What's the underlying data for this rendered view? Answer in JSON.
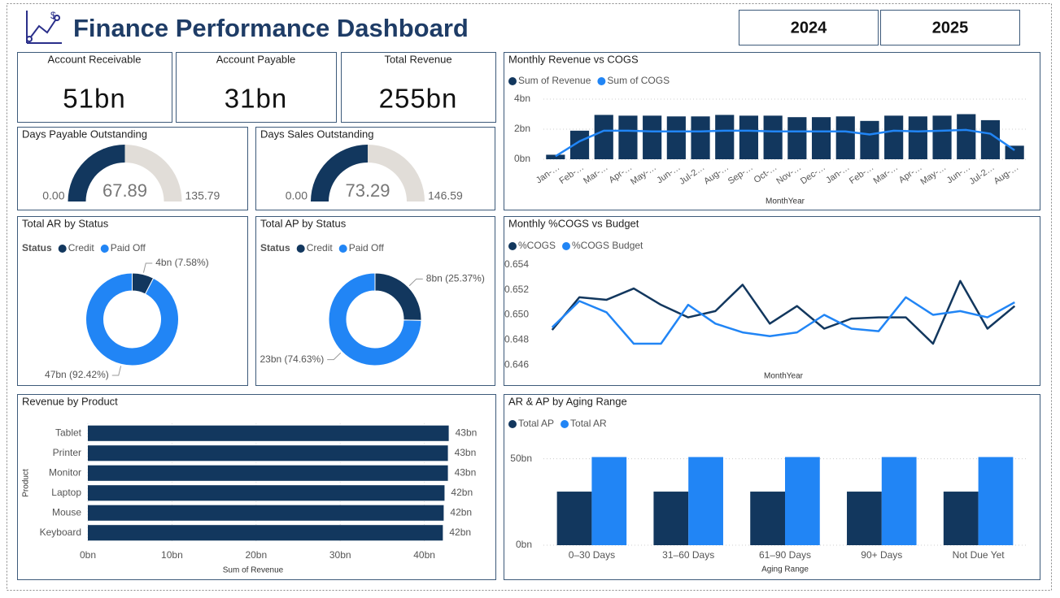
{
  "header": {
    "title": "Finance Performance Dashboard",
    "years": [
      "2024",
      "2025"
    ]
  },
  "cards": [
    {
      "label": "Account Receivable",
      "value": "51bn"
    },
    {
      "label": "Account Payable",
      "value": "31bn"
    },
    {
      "label": "Total Revenue",
      "value": "255bn"
    }
  ],
  "chart_data": [
    {
      "type": "gauge",
      "title": "Days Payable Outstanding",
      "value": 67.89,
      "range": [
        {
          "value": 0,
          "label": "0.00"
        },
        135.79
      ],
      "color": "#12375e",
      "track_color": "#e1ddd8"
    },
    {
      "type": "gauge",
      "title": "Days Sales Outstanding",
      "value": 73.29,
      "range": [
        {
          "value": 0,
          "label": "0.00"
        },
        146.59
      ],
      "color": "#12375e",
      "track_color": "#e1ddd8"
    },
    {
      "type": "donut",
      "title": "Total AR by Status",
      "legend_title": "Status",
      "categories": [
        "Credit",
        "Paid Off"
      ],
      "values": [
        7.58,
        92.42
      ],
      "value_labels": [
        "4bn (7.58%)",
        "47bn (92.42%)"
      ],
      "colors": [
        "#12375e",
        "#2185f5"
      ]
    },
    {
      "type": "donut",
      "title": "Total AP by Status",
      "legend_title": "Status",
      "categories": [
        "Credit",
        "Paid Off"
      ],
      "values": [
        25.37,
        74.63
      ],
      "value_labels": [
        "8bn (25.37%)",
        "23bn (74.63%)"
      ],
      "colors": [
        "#12375e",
        "#2185f5"
      ]
    },
    {
      "type": "bar",
      "orientation": "horizontal",
      "title": "Revenue by Product",
      "x_label": "Sum of Revenue",
      "y_label": "Product",
      "categories": [
        "Tablet",
        "Printer",
        "Monitor",
        "Laptop",
        "Mouse",
        "Keyboard"
      ],
      "values": [
        42.9,
        42.8,
        42.8,
        42.4,
        42.3,
        42.2
      ],
      "value_labels": [
        "43bn",
        "43bn",
        "43bn",
        "42bn",
        "42bn",
        "42bn"
      ],
      "color": "#12375e",
      "xlim": [
        0,
        47
      ],
      "xticks": [
        {
          "value": 0,
          "label": "0bn"
        },
        {
          "value": 10,
          "label": "10bn"
        },
        {
          "value": 20,
          "label": "20bn"
        },
        {
          "value": 30,
          "label": "30bn"
        },
        {
          "value": 40,
          "label": "40bn"
        }
      ],
      "grid": true
    },
    {
      "type": "combo",
      "title": "Monthly Revenue vs COGS",
      "x_label": "MonthYear",
      "categories": [
        "Jan-…",
        "Feb-…",
        "Mar-…",
        "Apr-…",
        "May-…",
        "Jun-…",
        "Jul-2…",
        "Aug-…",
        "Sep-…",
        "Oct-…",
        "Nov-…",
        "Dec-…",
        "Jan-…",
        "Feb-…",
        "Mar-…",
        "Apr-…",
        "May-…",
        "Jun-…",
        "Jul-2…",
        "Aug-…"
      ],
      "series": [
        {
          "name": "Sum of Revenue",
          "kind": "bar",
          "color": "#12375e",
          "values": [
            0.3,
            1.9,
            2.95,
            2.9,
            2.9,
            2.85,
            2.85,
            2.95,
            2.9,
            2.9,
            2.8,
            2.8,
            2.85,
            2.55,
            2.9,
            2.85,
            2.9,
            3.0,
            2.6,
            0.9
          ]
        },
        {
          "name": "Sum of COGS",
          "kind": "line",
          "color": "#2185f5",
          "values": [
            0.2,
            1.2,
            1.9,
            1.9,
            1.85,
            1.85,
            1.85,
            1.9,
            1.9,
            1.85,
            1.85,
            1.85,
            1.85,
            1.65,
            1.9,
            1.85,
            1.9,
            1.95,
            1.7,
            0.6
          ]
        }
      ],
      "ylim": [
        0,
        4
      ],
      "yticks": [
        {
          "value": 0,
          "label": "0bn"
        },
        {
          "value": 2,
          "label": "2bn"
        },
        {
          "value": 4,
          "label": "4bn"
        }
      ],
      "grid": true
    },
    {
      "type": "line",
      "title": "Monthly %COGS vs Budget",
      "x_label": "MonthYear",
      "categories": [
        null,
        null,
        null,
        null,
        null,
        null,
        null,
        null,
        null,
        null,
        null,
        null,
        null,
        null,
        null,
        null,
        null,
        null
      ],
      "series": [
        {
          "name": "%COGS",
          "color": "#12375e",
          "values": [
            0.6488,
            0.6514,
            0.6512,
            0.6521,
            0.6508,
            0.6498,
            0.6503,
            0.6524,
            0.6493,
            0.6507,
            0.6489,
            0.6497,
            0.6498,
            0.6498,
            0.6477,
            0.6527,
            0.6489,
            0.6507
          ]
        },
        {
          "name": "%COGS Budget",
          "color": "#2185f5",
          "values": [
            0.649,
            0.6511,
            0.6502,
            0.6477,
            0.6477,
            0.6508,
            0.6493,
            0.6486,
            0.6483,
            0.6486,
            0.65,
            0.6489,
            0.6487,
            0.6514,
            0.65,
            0.6503,
            0.6498,
            0.651
          ]
        }
      ],
      "ylim": [
        0.6455,
        0.6545
      ],
      "yticks": [
        0.646,
        0.648,
        {
          "value": 0.65,
          "label": "0.650"
        },
        0.652,
        0.654
      ],
      "grid": false
    },
    {
      "type": "bar",
      "title": "AR & AP by Aging Range",
      "x_label": "Aging Range",
      "categories": [
        "0–30 Days",
        "31–60 Days",
        "61–90 Days",
        "90+ Days",
        "Not Due Yet"
      ],
      "series": [
        {
          "name": "Total AP",
          "color": "#12375e",
          "values": [
            31,
            31,
            31,
            31,
            31
          ]
        },
        {
          "name": "Total AR",
          "color": "#2185f5",
          "values": [
            51,
            51,
            51,
            51,
            51
          ]
        }
      ],
      "ylim": [
        0,
        55
      ],
      "yticks": [
        {
          "value": 0,
          "label": "0bn"
        },
        {
          "value": 50,
          "label": "50bn"
        }
      ],
      "grid": true
    }
  ]
}
